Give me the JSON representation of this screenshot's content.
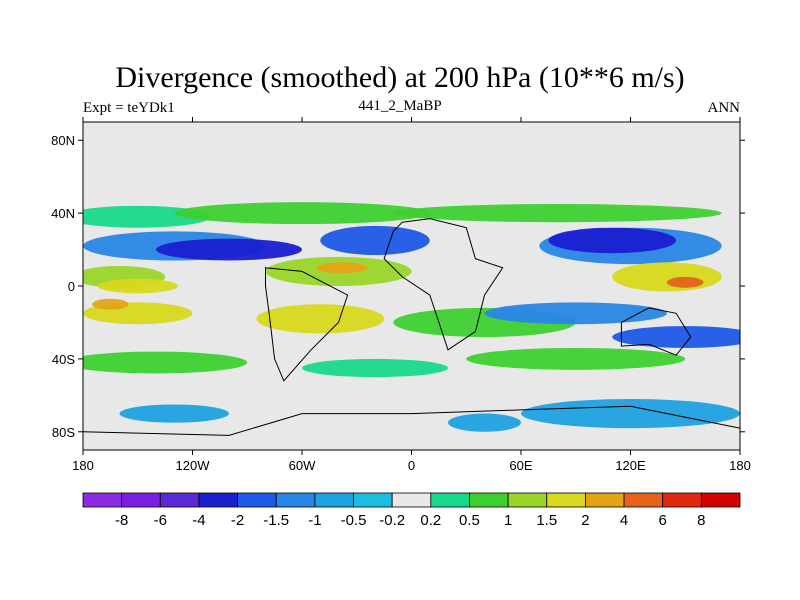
{
  "header": {
    "title": "Divergence (smoothed) at 200 hPa (10**6 m/s)",
    "left": "Expt = teYDk1",
    "center": "441_2_MaBP",
    "right": "ANN"
  },
  "chart_data": {
    "type": "heatmap",
    "title": "Divergence (smoothed) at 200 hPa (10**6 m/s)",
    "subtitle_left": "Expt = teYDk1",
    "subtitle_center": "441_2_MaBP",
    "subtitle_right": "ANN",
    "xlim": [
      -180,
      180
    ],
    "ylim": [
      -90,
      90
    ],
    "x_ticks": [
      {
        "value": -180,
        "label": "180"
      },
      {
        "value": -120,
        "label": "120W"
      },
      {
        "value": -60,
        "label": "60W"
      },
      {
        "value": 0,
        "label": "0"
      },
      {
        "value": 60,
        "label": "60E"
      },
      {
        "value": 120,
        "label": "120E"
      },
      {
        "value": 180,
        "label": "180"
      }
    ],
    "y_ticks": [
      {
        "value": 80,
        "label": "80N"
      },
      {
        "value": 40,
        "label": "40N"
      },
      {
        "value": 0,
        "label": "0"
      },
      {
        "value": -40,
        "label": "40S"
      },
      {
        "value": -80,
        "label": "80S"
      }
    ],
    "colorbar": {
      "labels": [
        "-8",
        "-6",
        "-4",
        "-2",
        "-1.5",
        "-1",
        "-0.5",
        "-0.2",
        "0.2",
        "0.5",
        "1",
        "1.5",
        "2",
        "4",
        "6",
        "8"
      ],
      "colors": [
        "#8a2be2",
        "#7a1ee0",
        "#5a2ad6",
        "#1a1fd0",
        "#1e5ae8",
        "#2a86e6",
        "#1fa2e2",
        "#1bbde0",
        "#e8e8e8",
        "#19d98a",
        "#3ed030",
        "#9ad62a",
        "#d8d81e",
        "#e5a418",
        "#e5641a",
        "#e02a10",
        "#d40000"
      ]
    },
    "regions": [
      {
        "type": "band",
        "lat_min": 52,
        "lat_max": 90,
        "level": 0
      },
      {
        "type": "band",
        "lat_min": -90,
        "lat_max": -88,
        "level": 0
      }
    ],
    "blobs": [
      {
        "lon": -150,
        "lat": 38,
        "rx": 40,
        "ry": 6,
        "level": 0.5
      },
      {
        "lon": -60,
        "lat": 40,
        "rx": 70,
        "ry": 6,
        "level": 1
      },
      {
        "lon": -130,
        "lat": 22,
        "rx": 50,
        "ry": 8,
        "level": -1
      },
      {
        "lon": -100,
        "lat": 20,
        "rx": 40,
        "ry": 6,
        "level": -2
      },
      {
        "lon": -20,
        "lat": 25,
        "rx": 30,
        "ry": 8,
        "level": -1.5
      },
      {
        "lon": 120,
        "lat": 22,
        "rx": 50,
        "ry": 10,
        "level": -1
      },
      {
        "lon": 110,
        "lat": 25,
        "rx": 35,
        "ry": 7,
        "level": -2
      },
      {
        "lon": 80,
        "lat": 40,
        "rx": 90,
        "ry": 5,
        "level": 1
      },
      {
        "lon": -160,
        "lat": 5,
        "rx": 25,
        "ry": 6,
        "level": 1.5
      },
      {
        "lon": -150,
        "lat": 0,
        "rx": 22,
        "ry": 4,
        "level": 2
      },
      {
        "lon": -40,
        "lat": 8,
        "rx": 40,
        "ry": 8,
        "level": 1.5
      },
      {
        "lon": -38,
        "lat": 10,
        "rx": 14,
        "ry": 3,
        "level": 4
      },
      {
        "lon": 140,
        "lat": 5,
        "rx": 30,
        "ry": 8,
        "level": 2
      },
      {
        "lon": 150,
        "lat": 2,
        "rx": 10,
        "ry": 3,
        "level": 6
      },
      {
        "lon": -150,
        "lat": -15,
        "rx": 30,
        "ry": 6,
        "level": 2
      },
      {
        "lon": -165,
        "lat": -10,
        "rx": 10,
        "ry": 3,
        "level": 4
      },
      {
        "lon": -50,
        "lat": -18,
        "rx": 35,
        "ry": 8,
        "level": 2
      },
      {
        "lon": 40,
        "lat": -20,
        "rx": 50,
        "ry": 8,
        "level": 1
      },
      {
        "lon": 90,
        "lat": -15,
        "rx": 50,
        "ry": 6,
        "level": -1
      },
      {
        "lon": 150,
        "lat": -28,
        "rx": 40,
        "ry": 6,
        "level": -1.5
      },
      {
        "lon": -140,
        "lat": -42,
        "rx": 50,
        "ry": 6,
        "level": 1
      },
      {
        "lon": 90,
        "lat": -40,
        "rx": 60,
        "ry": 6,
        "level": 1
      },
      {
        "lon": -20,
        "lat": -45,
        "rx": 40,
        "ry": 5,
        "level": 0.5
      },
      {
        "lon": -130,
        "lat": -70,
        "rx": 30,
        "ry": 5,
        "level": -0.5
      },
      {
        "lon": 120,
        "lat": -70,
        "rx": 60,
        "ry": 8,
        "level": -0.5
      },
      {
        "lon": 40,
        "lat": -75,
        "rx": 20,
        "ry": 5,
        "level": -0.5
      }
    ]
  }
}
